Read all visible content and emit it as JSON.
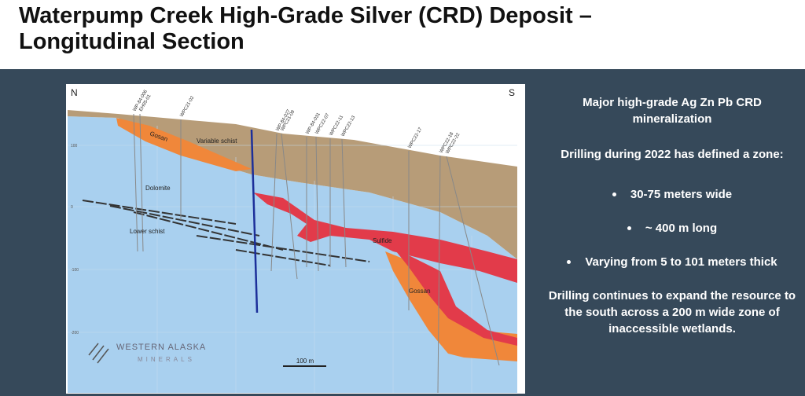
{
  "header": {
    "title_lines": [
      "Waterpump Creek High-Grade Silver (CRD) Deposit –",
      "Longitudinal Section"
    ]
  },
  "section": {
    "compass": {
      "north": "N",
      "south": "S"
    },
    "units": [
      "Gosan",
      "Variable schist",
      "Dolomite",
      "Lower schist",
      "Sulfide",
      "Gossan"
    ],
    "drill_holes": [
      "WP-84-006",
      "EH05-01",
      "WPC21-02",
      "WP-84-027",
      "WPC21-09",
      "WP-84-031",
      "WPC22-07",
      "WPC22-11",
      "WPC22-13",
      "WPC22-17",
      "WPC22-18",
      "WPC22-22"
    ],
    "elevations": [
      "100",
      "0",
      "-100",
      "-200"
    ],
    "scale": "100 m",
    "logo": {
      "name": "WESTERN ALASKA",
      "sub": "MINERALS"
    }
  },
  "sidebar": {
    "heading": "Major high-grade Ag Zn Pb CRD mineralization",
    "intro": "Drilling during 2022 has defined a zone:",
    "bullets": [
      "30-75 meters wide",
      "~ 400 m long",
      "Varying from 5 to 101 meters thick"
    ],
    "closing": "Drilling continues to expand the resource to the south across a 200 m wide zone of  inaccessible wetlands."
  }
}
